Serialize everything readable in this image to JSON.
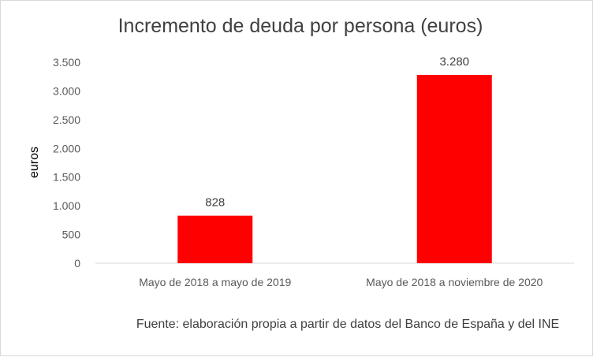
{
  "chart_data": {
    "type": "bar",
    "title": "Incremento de deuda por persona (euros)",
    "ylabel": "euros",
    "xlabel": "",
    "categories": [
      "Mayo de 2018 a mayo de 2019",
      "Mayo de 2018 a noviembre de 2020"
    ],
    "values": [
      828,
      3280
    ],
    "data_labels": [
      "828",
      "3.280"
    ],
    "ylim": [
      0,
      3500
    ],
    "yticks": [
      0,
      500,
      1000,
      1500,
      2000,
      2500,
      3000,
      3500
    ],
    "ytick_labels": [
      "0",
      "500",
      "1.000",
      "1.500",
      "2.000",
      "2.500",
      "3.000",
      "3.500"
    ],
    "grid": false,
    "bar_color": "#ff0000",
    "source_note": "Fuente: elaboración propia a partir de datos del Banco de España y del INE"
  }
}
